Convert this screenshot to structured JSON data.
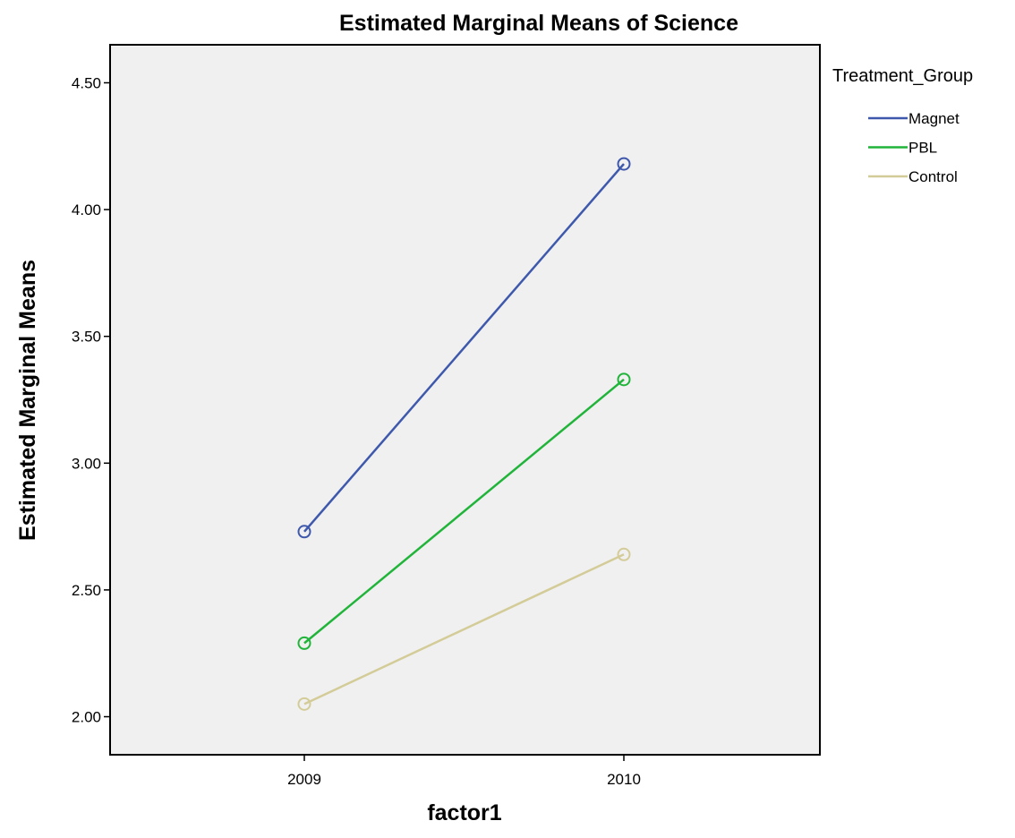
{
  "chart_data": {
    "type": "line",
    "title": "Estimated Marginal Means of Science",
    "xlabel": "factor1",
    "ylabel": "Estimated Marginal Means",
    "categories": [
      "2009",
      "2010"
    ],
    "ylim": [
      1.85,
      4.65
    ],
    "yticks": [
      2.0,
      2.5,
      3.0,
      3.5,
      4.0,
      4.5
    ],
    "ytick_labels": [
      "2.00",
      "2.50",
      "3.00",
      "3.50",
      "4.00",
      "4.50"
    ],
    "grid": false,
    "plot_background": "#f0f0f0",
    "legend_title": "Treatment_Group",
    "legend_position": "right",
    "series": [
      {
        "name": "Magnet",
        "values": [
          2.73,
          4.18
        ],
        "color": "#3e58ac",
        "marker": "circle-open"
      },
      {
        "name": "PBL",
        "values": [
          2.29,
          3.33
        ],
        "color": "#21b43a",
        "marker": "circle-open"
      },
      {
        "name": "Control",
        "values": [
          2.05,
          2.64
        ],
        "color": "#d4cc98",
        "marker": "circle-open"
      }
    ]
  }
}
